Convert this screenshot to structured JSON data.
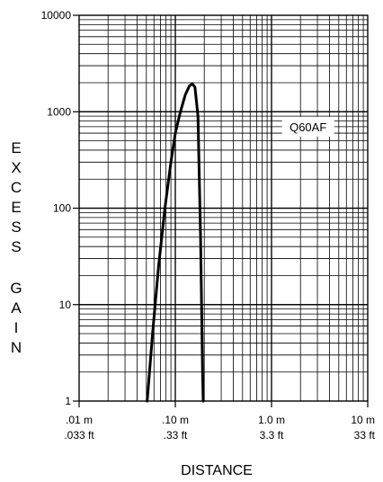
{
  "chart_data": {
    "type": "line",
    "title": "",
    "xlabel": "DISTANCE",
    "ylabel": "EXCESS GAIN",
    "xscale": "log",
    "yscale": "log",
    "xlim": [
      0.01,
      10
    ],
    "ylim": [
      1,
      10000
    ],
    "grid": true,
    "x_ticks": [
      {
        "value": 0.01,
        "line1": ".01 m",
        "line2": ".033 ft"
      },
      {
        "value": 0.1,
        "line1": ".10 m",
        "line2": ".33 ft"
      },
      {
        "value": 1,
        "line1": "1.0 m",
        "line2": "3.3 ft"
      },
      {
        "value": 10,
        "line1": "10 m",
        "line2": "33 ft"
      }
    ],
    "y_ticks": [
      {
        "value": 1,
        "label": "1"
      },
      {
        "value": 10,
        "label": "10"
      },
      {
        "value": 100,
        "label": "100"
      },
      {
        "value": 1000,
        "label": "1000"
      },
      {
        "value": 10000,
        "label": "10000"
      }
    ],
    "series": [
      {
        "name": "",
        "color": "#000000",
        "x": [
          0.051,
          0.058,
          0.067,
          0.078,
          0.09,
          0.1,
          0.113,
          0.127,
          0.14,
          0.15,
          0.16,
          0.172,
          0.183,
          0.192,
          0.195
        ],
        "y": [
          1,
          5,
          25,
          100,
          300,
          600,
          1000,
          1500,
          1850,
          1950,
          1800,
          900,
          50,
          2,
          1
        ]
      }
    ],
    "annotations": [
      {
        "text": "Q60AF",
        "x": 2.4,
        "y": 700
      }
    ]
  }
}
